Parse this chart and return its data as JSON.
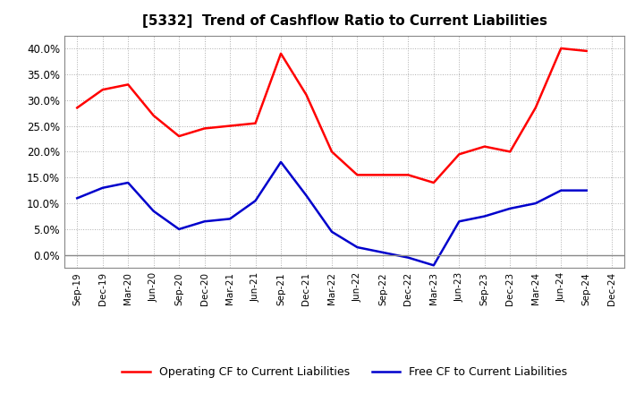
{
  "title": "[5332]  Trend of Cashflow Ratio to Current Liabilities",
  "x_labels": [
    "Sep-19",
    "Dec-19",
    "Mar-20",
    "Jun-20",
    "Sep-20",
    "Dec-20",
    "Mar-21",
    "Jun-21",
    "Sep-21",
    "Dec-21",
    "Mar-22",
    "Jun-22",
    "Sep-22",
    "Dec-22",
    "Mar-23",
    "Jun-23",
    "Sep-23",
    "Dec-23",
    "Mar-24",
    "Jun-24",
    "Sep-24",
    "Dec-24"
  ],
  "operating_cf": [
    0.285,
    0.32,
    0.33,
    0.27,
    0.23,
    0.245,
    0.25,
    0.255,
    0.39,
    0.31,
    0.2,
    0.155,
    0.155,
    0.155,
    0.14,
    0.195,
    0.21,
    0.2,
    0.285,
    0.4,
    0.395,
    null
  ],
  "free_cf": [
    0.11,
    0.13,
    0.14,
    0.085,
    0.05,
    0.065,
    0.07,
    0.105,
    0.18,
    0.115,
    0.045,
    0.015,
    0.005,
    -0.005,
    -0.02,
    0.065,
    0.075,
    0.09,
    0.1,
    0.125,
    0.125,
    null
  ],
  "operating_color": "#ff0000",
  "free_color": "#0000cc",
  "ylim": [
    -0.025,
    0.425
  ],
  "yticks": [
    0.0,
    0.05,
    0.1,
    0.15,
    0.2,
    0.25,
    0.3,
    0.35,
    0.4
  ],
  "background_color": "#ffffff",
  "plot_bg_color": "#f5f5f5",
  "grid_color": "#999999",
  "legend_op": "Operating CF to Current Liabilities",
  "legend_free": "Free CF to Current Liabilities"
}
